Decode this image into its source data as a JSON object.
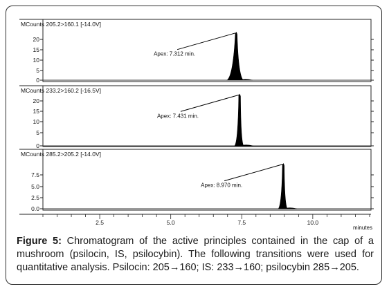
{
  "chart_data": [
    {
      "type": "line",
      "ylabel": "MCounts",
      "trace_label": "205.2>160.1 [-14.0V]",
      "annotation": "Apex: 7.312 min.",
      "apex_x": 7.312,
      "ylim": [
        0,
        25
      ],
      "yticks": [
        "0",
        "5",
        "10",
        "15",
        "20"
      ],
      "peak_height": 23.5
    },
    {
      "type": "line",
      "ylabel": "MCounts",
      "trace_label": "233.2>160.2 [-16.5V]",
      "annotation": "Apex: 7.431 min.",
      "apex_x": 7.431,
      "ylim": [
        0,
        25
      ],
      "yticks": [
        "0",
        "5",
        "10",
        "15",
        "20"
      ],
      "peak_height": 23
    },
    {
      "type": "line",
      "ylabel": "MCounts",
      "trace_label": "285.2>205.2 [-14.0V]",
      "annotation": "Apex: 8.970 min.",
      "apex_x": 8.97,
      "ylim": [
        0,
        10.5
      ],
      "yticks": [
        "0.0",
        "2.5",
        "5.0",
        "7.5"
      ],
      "peak_height": 10
    }
  ],
  "x_axis": {
    "xlim": [
      0.5,
      12.05
    ],
    "tick_labels": [
      "2.5",
      "5.0",
      "7.5",
      "10.0"
    ],
    "tick_values": [
      2.5,
      5.0,
      7.5,
      10.0
    ],
    "label": "minutes"
  },
  "caption": {
    "label": "Figure 5:",
    "text": " Chromatogram of the active principles contained in the cap of a mushroom (psilocin, IS, psilocybin). The following transitions were used for quantitative analysis. Psilocin: 205→160; IS: 233→160; psilocybin 285→205."
  }
}
